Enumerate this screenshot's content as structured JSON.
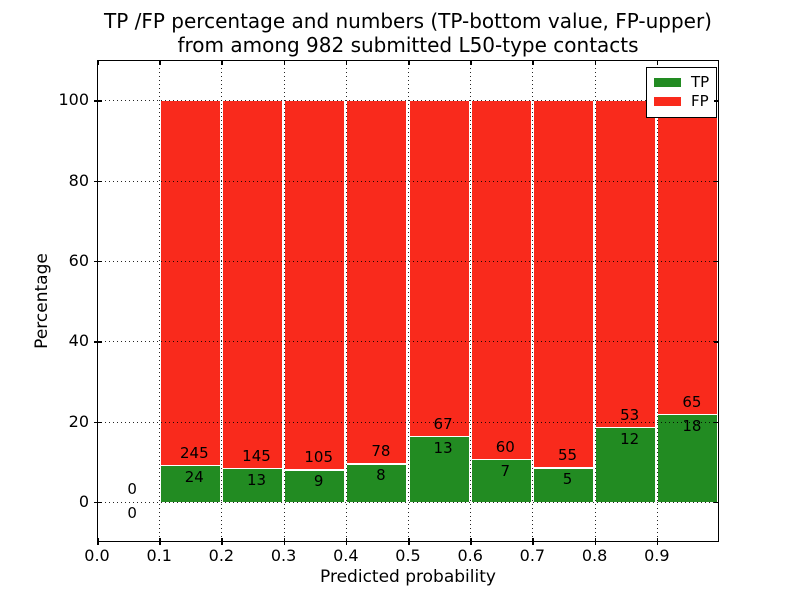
{
  "title": {
    "line1": "TP /FP percentage and numbers (TP-bottom value, FP-upper)",
    "line2": "from among 982 submitted L50-type contacts"
  },
  "axes": {
    "xlabel": "Predicted probability",
    "ylabel": "Percentage",
    "xticks": [
      "0.0",
      "0.1",
      "0.2",
      "0.3",
      "0.4",
      "0.5",
      "0.6",
      "0.7",
      "0.8",
      "0.9"
    ],
    "yticks": [
      "0",
      "20",
      "40",
      "60",
      "80",
      "100"
    ]
  },
  "legend": {
    "items": [
      {
        "label": "TP",
        "color": "#228b22"
      },
      {
        "label": "FP",
        "color": "#f92a1c"
      }
    ]
  },
  "colors": {
    "tp_green": "#228b22",
    "fp_red": "#f92a1c",
    "background": "#ffffff",
    "grid": "#000000"
  },
  "chart_data": {
    "type": "bar",
    "variant": "stacked-percentage",
    "title": "TP /FP percentage and numbers (TP-bottom value, FP-upper) from among 982 submitted L50-type contacts",
    "xlabel": "Predicted probability",
    "ylabel": "Percentage",
    "xlim": [
      0,
      1
    ],
    "ylim": [
      -10,
      110
    ],
    "grid": "dotted",
    "legend_position": "upper right",
    "bin_width": 0.1,
    "bins_start": [
      0,
      0.1,
      0.2,
      0.3,
      0.4,
      0.5,
      0.6,
      0.7,
      0.8,
      0.9
    ],
    "total_contacts": 982,
    "series": [
      {
        "name": "TP",
        "color": "#228b22",
        "counts": [
          0,
          24,
          13,
          9,
          8,
          13,
          7,
          5,
          12,
          18
        ]
      },
      {
        "name": "FP",
        "color": "#f92a1c",
        "counts": [
          0,
          245,
          145,
          105,
          78,
          67,
          60,
          55,
          53,
          65
        ]
      }
    ],
    "tp_percent_by_bin": [
      null,
      8.92,
      8.23,
      7.89,
      9.3,
      16.25,
      10.45,
      8.33,
      18.46,
      21.69
    ]
  }
}
